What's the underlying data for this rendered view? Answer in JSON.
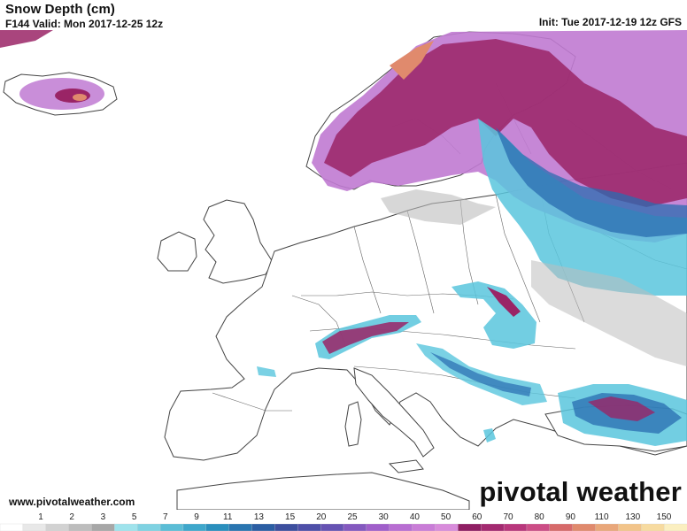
{
  "header": {
    "title": "Snow Depth (cm)",
    "valid": "F144 Valid: Mon 2017-12-25 12z",
    "init": "Init: Tue 2017-12-19 12z GFS"
  },
  "footer": {
    "source": "www.pivotalweather.com",
    "brand": "pivotal weather"
  },
  "legend": {
    "labels": [
      "1",
      "2",
      "3",
      "5",
      "7",
      "9",
      "11",
      "13",
      "15",
      "20",
      "25",
      "30",
      "40",
      "50",
      "60",
      "70",
      "80",
      "90",
      "110",
      "130",
      "150"
    ],
    "colors": [
      "#ffffff",
      "#e8e8e8",
      "#d2d2d2",
      "#bdbdbd",
      "#a7a7a7",
      "#9fe3ec",
      "#7fd2e2",
      "#5bbdd6",
      "#3ea7cb",
      "#2a8fbd",
      "#2a75b0",
      "#2b5ea3",
      "#3d4f9e",
      "#4e4fa8",
      "#6653b3",
      "#8459bf",
      "#a05fca",
      "#b86ed2",
      "#c97dd7",
      "#d88cdb",
      "#8f1f63",
      "#a32a70",
      "#b8377c",
      "#cc4d86",
      "#d76a6a",
      "#e08a6d",
      "#e9a77a",
      "#f2c48a",
      "#f7dba0",
      "#fbefc0"
    ]
  },
  "colors": {
    "land": "#ffffff",
    "sea": "#ffffff",
    "border": "#444444",
    "snow_light": "#bdbdbd",
    "snow_cyan": "#59c6dd",
    "snow_blue": "#2a6cb0",
    "snow_purple": "#c07ad2",
    "snow_magenta": "#9a2466",
    "snow_orange": "#e08a6d"
  }
}
